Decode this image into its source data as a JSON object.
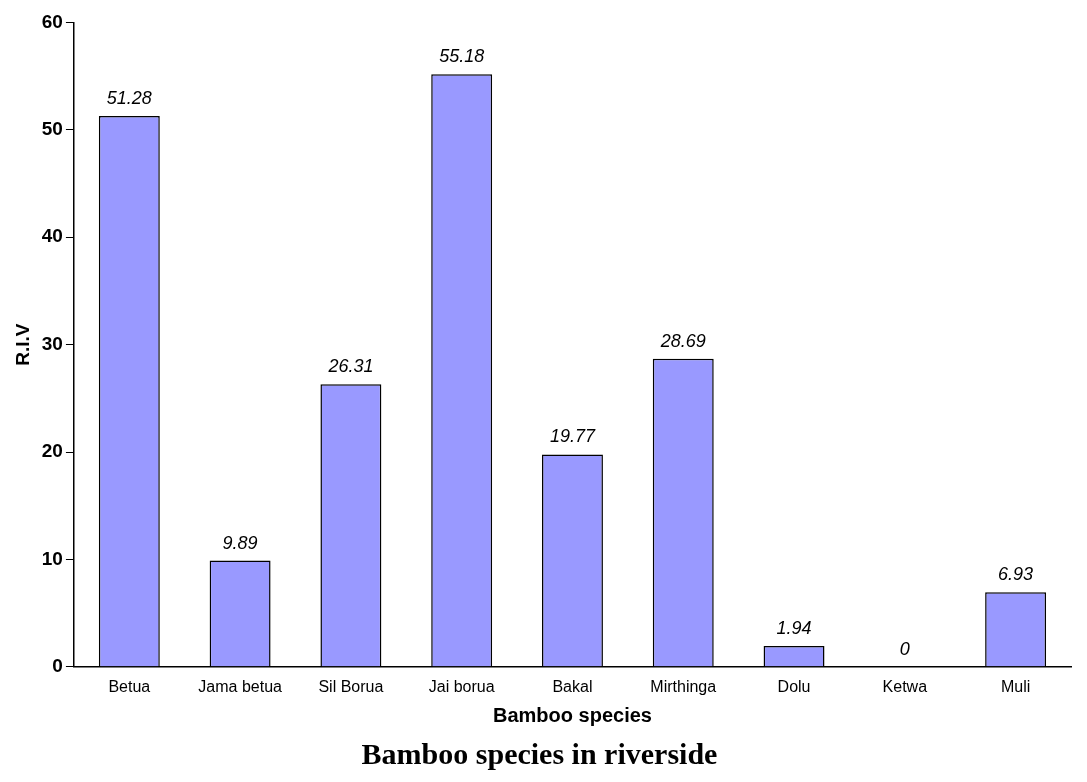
{
  "chart_data": {
    "type": "bar",
    "title": "Bamboo species in riverside",
    "xlabel": "Bamboo species",
    "ylabel": "R.I.V",
    "categories": [
      "Betua",
      "Jama betua",
      "Sil Borua",
      "Jai borua",
      "Bakal",
      "Mirthinga",
      "Dolu",
      "Ketwa",
      "Muli"
    ],
    "values": [
      51.28,
      9.89,
      26.31,
      55.18,
      19.77,
      28.69,
      1.94,
      0,
      6.93
    ],
    "color": "#9999ff",
    "ylim": [
      0,
      60
    ],
    "yticks": [
      0,
      10,
      20,
      30,
      40,
      50,
      60
    ],
    "grid": false,
    "data_labels": true,
    "legend": false
  }
}
